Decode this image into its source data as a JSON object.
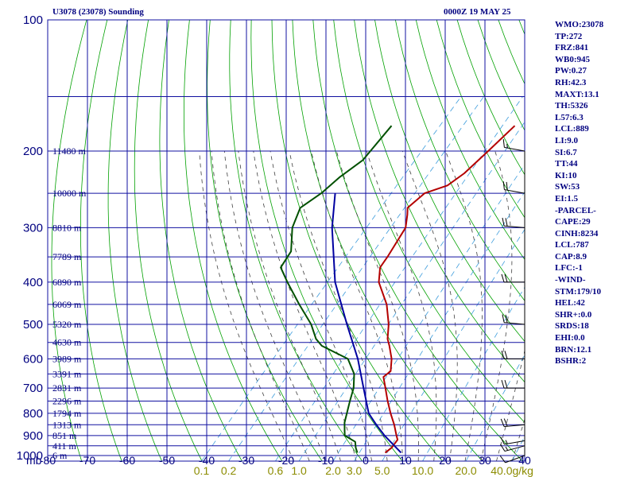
{
  "chart_data": {
    "type": "line",
    "title_left": "U3078 (23078) Sounding",
    "title_right": "0000Z 19 MAY 25",
    "pressure_unit_label": "mb",
    "pressure_ticks": [
      100,
      200,
      300,
      400,
      500,
      600,
      700,
      800,
      900,
      1000
    ],
    "temperature_ticks": [
      "-80",
      "-70",
      "-60",
      "-50",
      "-40",
      "-30",
      "-20",
      "-10",
      "0",
      "10",
      "20",
      "30",
      "40"
    ],
    "mixing_ratio_ticks": [
      "0.1",
      "0.2",
      "0.6",
      "1.0",
      "2.0",
      "3.0",
      "5.0",
      "10.0",
      "20.0",
      "40.0"
    ],
    "mixing_ratio_unit": "g/kg",
    "height_labels": [
      {
        "p": 1000,
        "label": "6 m"
      },
      {
        "p": 950,
        "label": "411 m"
      },
      {
        "p": 900,
        "label": "851 m"
      },
      {
        "p": 850,
        "label": "1313 m"
      },
      {
        "p": 800,
        "label": "1794 m"
      },
      {
        "p": 750,
        "label": "2296 m"
      },
      {
        "p": 700,
        "label": "2831 m"
      },
      {
        "p": 650,
        "label": "3391 m"
      },
      {
        "p": 600,
        "label": "3989 m"
      },
      {
        "p": 550,
        "label": "4630 m"
      },
      {
        "p": 500,
        "label": "5320 m"
      },
      {
        "p": 450,
        "label": "6069 m"
      },
      {
        "p": 400,
        "label": "6890 m"
      },
      {
        "p": 350,
        "label": "7789 m"
      },
      {
        "p": 300,
        "label": "8810 m"
      },
      {
        "p": 250,
        "label": "10000 m"
      },
      {
        "p": 200,
        "label": "11480 m"
      }
    ],
    "series": [
      {
        "role": "temperature",
        "color": "#b40000",
        "points": [
          {
            "p": 985,
            "t": 3.0
          },
          {
            "p": 960,
            "t": 3.5
          },
          {
            "p": 920,
            "t": 3.2
          },
          {
            "p": 900,
            "t": 2.0
          },
          {
            "p": 850,
            "t": -1.0
          },
          {
            "p": 800,
            "t": -4.5
          },
          {
            "p": 750,
            "t": -8.0
          },
          {
            "p": 700,
            "t": -11.5
          },
          {
            "p": 660,
            "t": -14.5
          },
          {
            "p": 640,
            "t": -14.0
          },
          {
            "p": 600,
            "t": -16.5
          },
          {
            "p": 560,
            "t": -20.0
          },
          {
            "p": 540,
            "t": -22.0
          },
          {
            "p": 500,
            "t": -25.0
          },
          {
            "p": 450,
            "t": -30.0
          },
          {
            "p": 400,
            "t": -37.0
          },
          {
            "p": 370,
            "t": -40.0
          },
          {
            "p": 350,
            "t": -40.5
          },
          {
            "p": 300,
            "t": -42.5
          },
          {
            "p": 280,
            "t": -45.0
          },
          {
            "p": 270,
            "t": -46.5
          },
          {
            "p": 250,
            "t": -45.5
          },
          {
            "p": 240,
            "t": -41.5
          },
          {
            "p": 225,
            "t": -40.0
          },
          {
            "p": 200,
            "t": -39.0
          },
          {
            "p": 175,
            "t": -38.0
          }
        ]
      },
      {
        "role": "dewpoint",
        "color": "#005000",
        "points": [
          {
            "p": 985,
            "t": -4.0
          },
          {
            "p": 960,
            "t": -5.5
          },
          {
            "p": 930,
            "t": -7.0
          },
          {
            "p": 900,
            "t": -11.0
          },
          {
            "p": 880,
            "t": -12.0
          },
          {
            "p": 840,
            "t": -14.0
          },
          {
            "p": 800,
            "t": -15.5
          },
          {
            "p": 750,
            "t": -17.5
          },
          {
            "p": 700,
            "t": -19.5
          },
          {
            "p": 650,
            "t": -22.5
          },
          {
            "p": 600,
            "t": -27.5
          },
          {
            "p": 560,
            "t": -37.0
          },
          {
            "p": 540,
            "t": -40.0
          },
          {
            "p": 500,
            "t": -44.5
          },
          {
            "p": 450,
            "t": -52.0
          },
          {
            "p": 400,
            "t": -60.0
          },
          {
            "p": 370,
            "t": -65.0
          },
          {
            "p": 340,
            "t": -66.0
          },
          {
            "p": 300,
            "t": -71.0
          },
          {
            "p": 270,
            "t": -73.5
          },
          {
            "p": 250,
            "t": -71.5
          },
          {
            "p": 230,
            "t": -70.5
          },
          {
            "p": 210,
            "t": -68.5
          },
          {
            "p": 175,
            "t": -69.0
          }
        ]
      },
      {
        "role": "parcel",
        "color": "#0000a0",
        "points": [
          {
            "p": 985,
            "t": 7.0
          },
          {
            "p": 900,
            "t": -1.0
          },
          {
            "p": 850,
            "t": -5.5
          },
          {
            "p": 800,
            "t": -10.0
          },
          {
            "p": 700,
            "t": -17.0
          },
          {
            "p": 600,
            "t": -25.0
          },
          {
            "p": 500,
            "t": -35.5
          },
          {
            "p": 400,
            "t": -48.0
          },
          {
            "p": 300,
            "t": -61.0
          },
          {
            "p": 250,
            "t": -68.0
          }
        ]
      }
    ],
    "axes": {
      "p_range": [
        100,
        1030
      ],
      "t_range_at_bottom": [
        -80,
        40
      ],
      "log_pressure": true,
      "skew": true,
      "grid": true
    },
    "wind_profile": [
      {
        "p": 1000,
        "dir": 250,
        "spd": 10
      },
      {
        "p": 950,
        "dir": 255,
        "spd": 15
      },
      {
        "p": 925,
        "dir": 260,
        "spd": 15
      },
      {
        "p": 850,
        "dir": 265,
        "spd": 20
      },
      {
        "p": 700,
        "dir": 270,
        "spd": 20
      },
      {
        "p": 600,
        "dir": 270,
        "spd": 20
      },
      {
        "p": 500,
        "dir": 275,
        "spd": 20
      },
      {
        "p": 400,
        "dir": 270,
        "spd": 20
      },
      {
        "p": 300,
        "dir": 275,
        "spd": 20
      },
      {
        "p": 250,
        "dir": 280,
        "spd": 20
      },
      {
        "p": 200,
        "dir": 280,
        "spd": 15
      }
    ]
  },
  "stats": [
    "WMO:23078",
    "TP:272",
    "FRZ:841",
    "WB0:945",
    "PW:0.27",
    "RH:42.3",
    "MAXT:13.1",
    "TH:5326",
    "L57:6.3",
    "LCL:889",
    "LI:9.0",
    "SI:6.7",
    "TT:44",
    "KI:10",
    "SW:53",
    "EI:1.5",
    "-PARCEL-",
    "CAPE:29",
    "CINH:8234",
    "LCL:787",
    "CAP:8.9",
    "LFC:-1",
    "-WIND-",
    "STM:179/10",
    "HEL:42",
    "SHR+:0.0",
    "SRDS:18",
    "EHI:0.0",
    "BRN:12.1",
    "BSHR:2"
  ],
  "colors": {
    "isobar": "#1010a0",
    "isotherm": "#1010a0",
    "dry_adiabat": "#00a000",
    "moist_adiabat": "#404040",
    "mixing_ratio": "#3c9cdc",
    "label": "#000080",
    "mixing_label": "#8c8c00"
  }
}
